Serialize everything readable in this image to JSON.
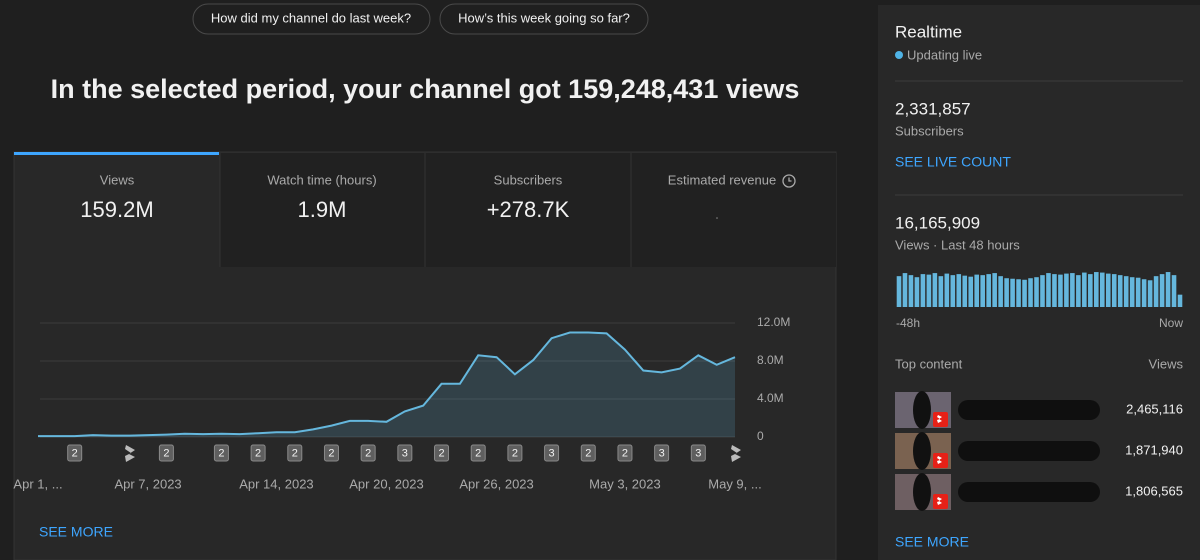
{
  "suggestions": [
    "How did my channel do last week?",
    "How’s this week going so far?"
  ],
  "headline": "In the selected period, your channel got 159,248,431 views",
  "metrics": [
    {
      "label": "Views",
      "value": "159.2M"
    },
    {
      "label": "Watch time (hours)",
      "value": "1.9M"
    },
    {
      "label": "Subscribers",
      "value": "+278.7K"
    },
    {
      "label": "Estimated revenue"
    }
  ],
  "see_more": "SEE MORE",
  "chart_data": [
    {
      "type": "line",
      "categories": [
        "Apr 1, ...",
        null,
        null,
        null,
        null,
        null,
        "Apr 7, 2023",
        null,
        null,
        null,
        null,
        null,
        null,
        "Apr 14, 2023",
        null,
        null,
        null,
        null,
        null,
        "Apr 20, 2023",
        null,
        null,
        null,
        null,
        null,
        "Apr 26, 2023",
        null,
        null,
        null,
        null,
        null,
        null,
        "May 3, 2023",
        null,
        null,
        null,
        null,
        null,
        "May 9, ..."
      ],
      "series": [
        {
          "name": "Views",
          "color": "#65b7dd",
          "values": [
            100000,
            100000,
            100000,
            200000,
            150000,
            150000,
            200000,
            250000,
            350000,
            300000,
            350000,
            300000,
            400000,
            500000,
            500000,
            800000,
            1200000,
            1700000,
            1700000,
            1600000,
            2700000,
            3300000,
            5600000,
            5600000,
            8600000,
            8400000,
            6600000,
            8100000,
            10400000,
            11000000,
            11000000,
            10900000,
            9200000,
            7000000,
            6800000,
            7200000,
            8600000,
            7600000,
            8400000
          ]
        }
      ],
      "markers": [
        null,
        null,
        "2",
        null,
        null,
        null,
        null,
        "2",
        null,
        null,
        "2",
        null,
        "2",
        null,
        "2",
        null,
        "2",
        null,
        "2",
        null,
        "3",
        null,
        "2",
        null,
        "2",
        null,
        "2",
        null,
        "3",
        null,
        "2",
        null,
        "2",
        null,
        "3",
        null,
        "3",
        null,
        null
      ],
      "ylim": [
        0,
        12000000
      ],
      "yticks": [
        0,
        {
          "value": 4000000,
          "label": "4.0M"
        },
        {
          "value": 8000000,
          "label": "8.0M"
        },
        {
          "value": 12000000,
          "label": "12.0M"
        }
      ],
      "grid": true
    },
    {
      "type": "bar",
      "categories": [
        "-48h",
        null,
        null,
        null,
        null,
        null,
        null,
        null,
        null,
        null,
        null,
        null,
        null,
        null,
        null,
        null,
        null,
        null,
        null,
        null,
        null,
        null,
        null,
        null,
        null,
        null,
        null,
        null,
        null,
        null,
        null,
        null,
        null,
        null,
        null,
        null,
        null,
        null,
        null,
        null,
        null,
        null,
        null,
        null,
        null,
        null,
        null,
        "Now"
      ],
      "values": [
        300000,
        330000,
        310000,
        290000,
        320000,
        315000,
        330000,
        300000,
        325000,
        310000,
        320000,
        305000,
        295000,
        315000,
        310000,
        320000,
        330000,
        300000,
        280000,
        275000,
        270000,
        265000,
        280000,
        290000,
        310000,
        330000,
        320000,
        315000,
        325000,
        330000,
        310000,
        335000,
        320000,
        340000,
        335000,
        325000,
        320000,
        310000,
        300000,
        290000,
        285000,
        270000,
        260000,
        300000,
        320000,
        340000,
        310000,
        120000
      ],
      "color": "#65b7dd",
      "ylim": [
        0,
        360000
      ]
    }
  ],
  "realtime": {
    "title": "Realtime",
    "status": "Updating live",
    "subscribers": "2,331,857",
    "subscribers_label": "Subscribers",
    "live_count": "SEE LIVE COUNT",
    "views": "16,165,909",
    "views_label": "Views · Last 48 hours",
    "top_content": "Top content",
    "views_header": "Views",
    "items": [
      "2,465,116",
      "1,871,940",
      "1,806,565"
    ],
    "see_more": "SEE MORE"
  }
}
